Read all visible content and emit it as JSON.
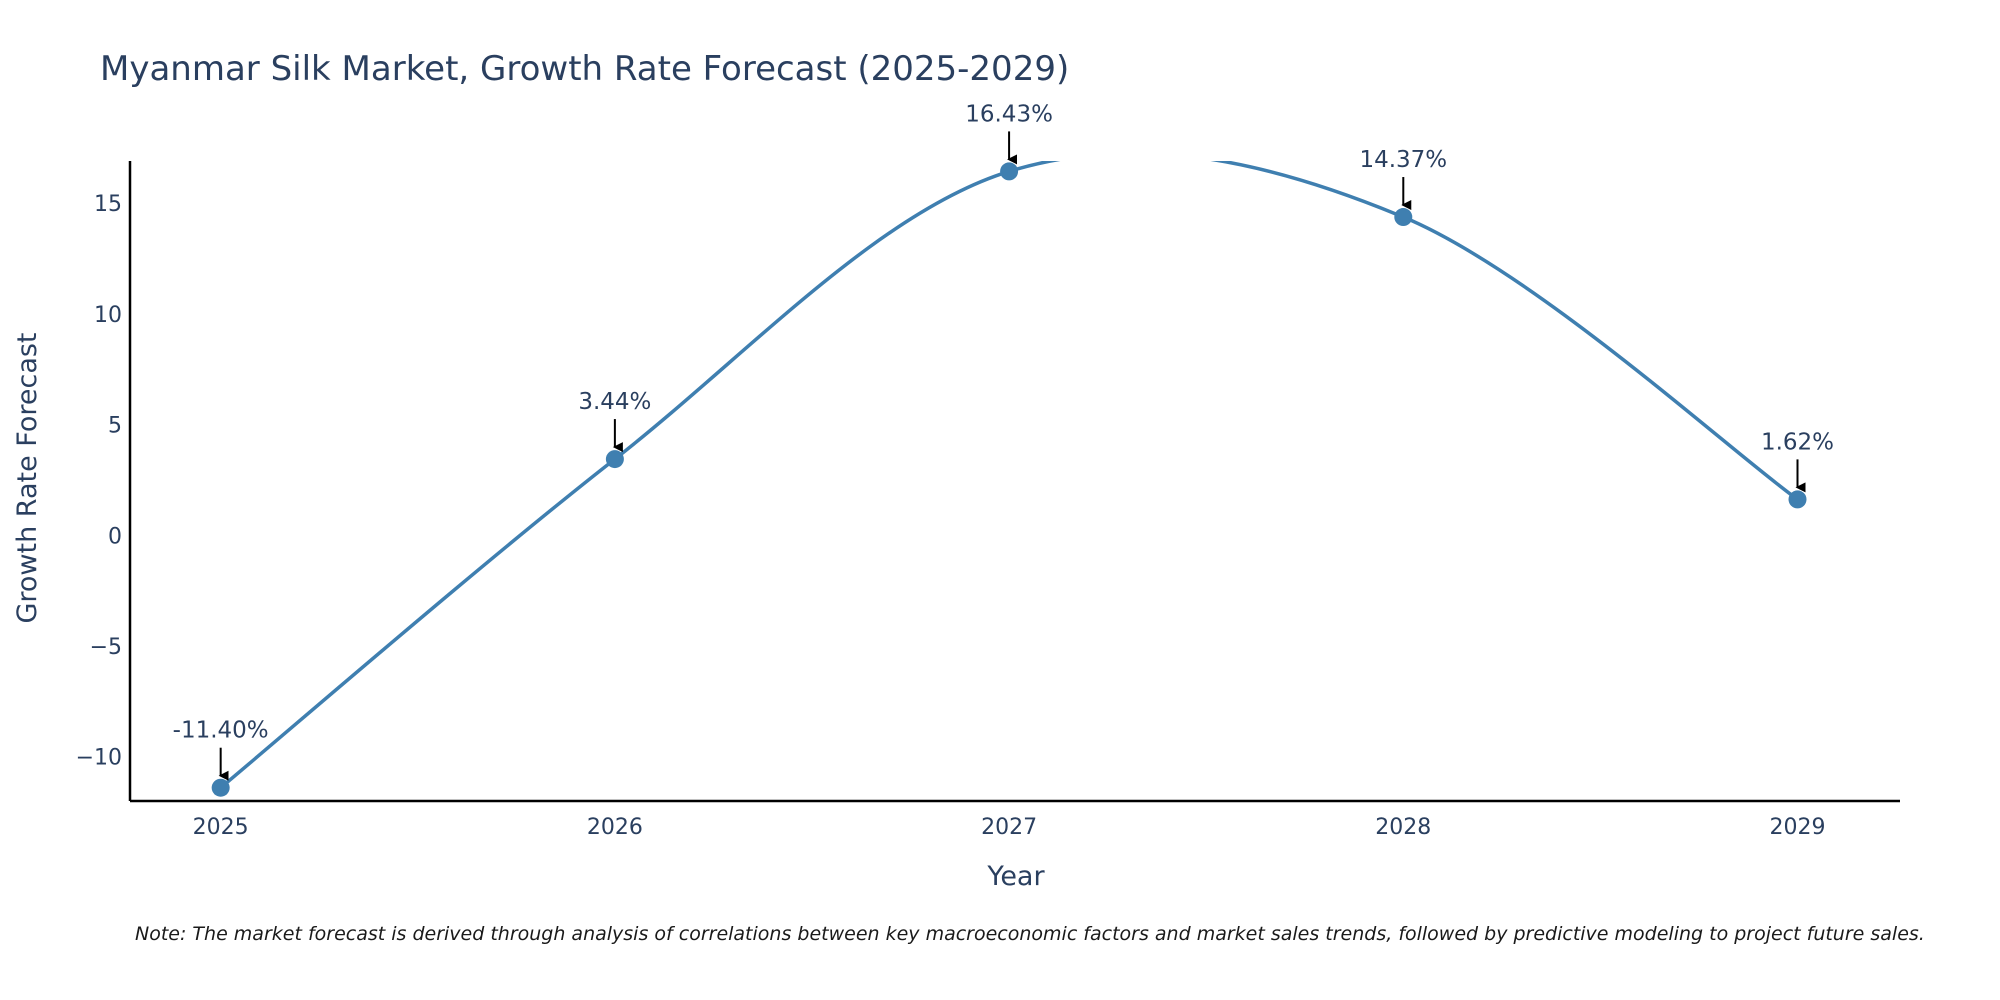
{
  "chart_data": {
    "type": "line",
    "title": "Myanmar Silk Market, Growth Rate Forecast (2025-2029)",
    "xlabel": "Year",
    "ylabel": "Growth Rate Forecast",
    "x": [
      2025,
      2026,
      2027,
      2028,
      2029
    ],
    "series": [
      {
        "name": "Growth Rate Forecast",
        "values": [
          -11.4,
          3.44,
          16.43,
          14.37,
          1.62
        ],
        "labels": [
          "-11.40%",
          "3.44%",
          "16.43%",
          "14.37%",
          "1.62%"
        ]
      }
    ],
    "x_ticks": [
      "2025",
      "2026",
      "2027",
      "2028",
      "2029"
    ],
    "y_ticks": [
      -10,
      -5,
      0,
      5,
      10,
      15
    ],
    "y_tick_labels": [
      "−10",
      "−5",
      "0",
      "5",
      "10",
      "15"
    ],
    "xlim": [
      2024.77,
      2029.26
    ],
    "ylim": [
      -12.0,
      16.9
    ],
    "grid": false,
    "line_shape": "spline",
    "color": "#3f7fb0",
    "annotation_arrow_color": "#000000"
  },
  "note": "Note: The market forecast is derived through analysis of correlations between key macroeconomic factors and market sales trends, followed by predictive modeling to project future sales."
}
